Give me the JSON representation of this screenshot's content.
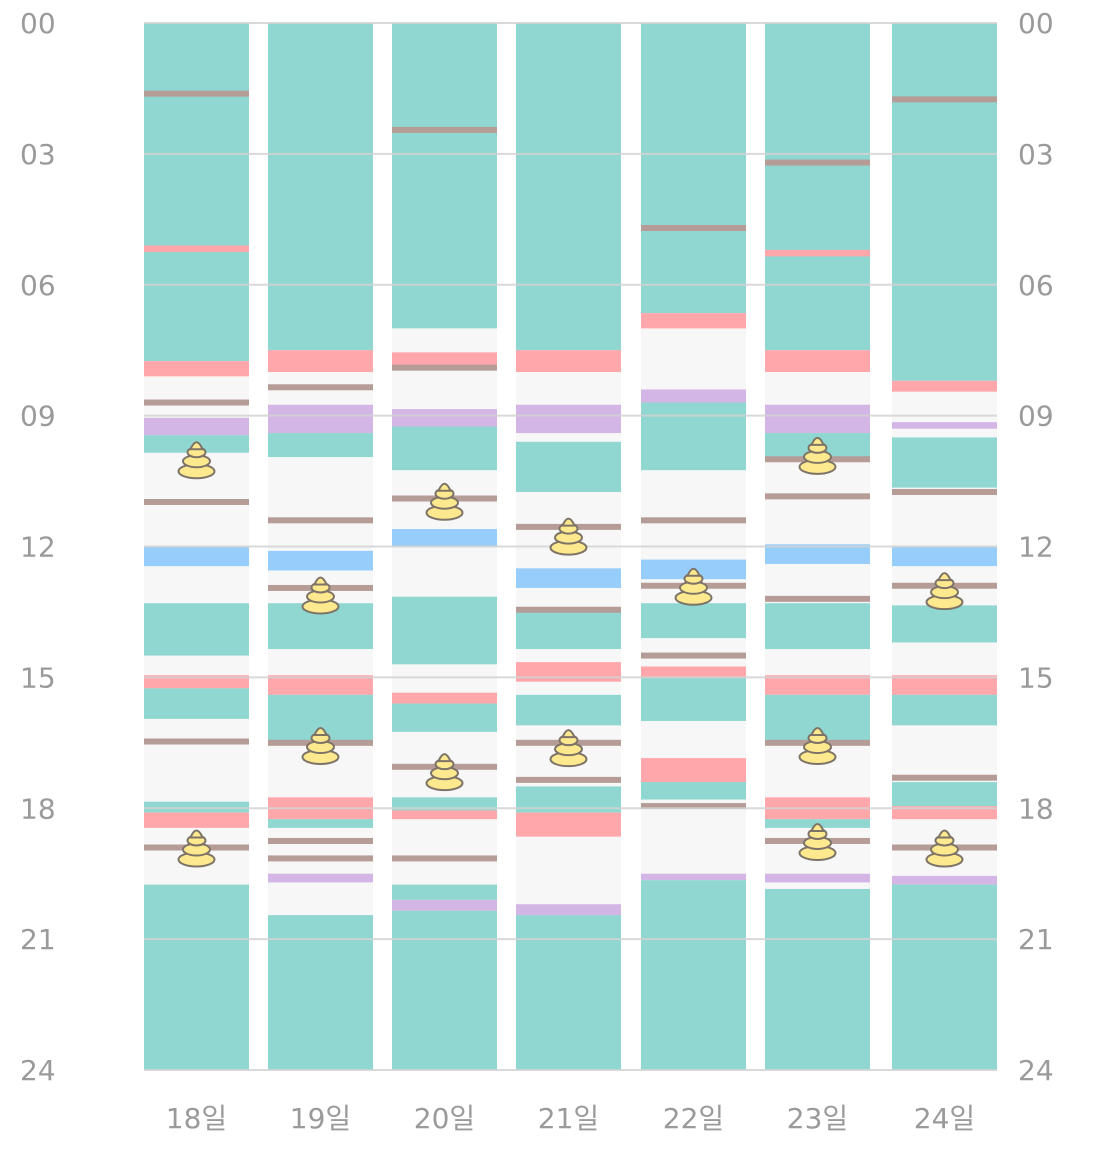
{
  "chart_data": {
    "type": "timeline",
    "y_axis": {
      "range_hours": [
        0,
        24
      ],
      "tick_labels": [
        "00",
        "03",
        "06",
        "09",
        "12",
        "15",
        "18",
        "21",
        "24"
      ],
      "tick_hours": [
        0,
        3,
        6,
        9,
        12,
        15,
        18,
        21,
        24
      ],
      "shown_on": [
        "left",
        "right"
      ]
    },
    "grid": true,
    "colors": {
      "teal": "#8fd7d0",
      "pink": "#ffa7ab",
      "purple": "#d3b6e6",
      "blue": "#97cdfb",
      "mark": "#b59c97",
      "gap": "#f7f7f7",
      "grid": "#d2d2d2",
      "icon_fill": "#ffe98f",
      "icon_stroke": "#7d7467"
    },
    "icon": "poop-icon",
    "days": [
      {
        "label": "18일",
        "blocks": [
          {
            "type": "teal",
            "start": 0,
            "end": 7.75
          },
          {
            "type": "pink",
            "start": 5.1,
            "end": 5.25
          },
          {
            "type": "pink",
            "start": 7.75,
            "end": 8.1
          },
          {
            "type": "purple",
            "start": 9.05,
            "end": 9.45
          },
          {
            "type": "teal",
            "start": 9.45,
            "end": 9.85
          },
          {
            "type": "blue",
            "start": 12.0,
            "end": 12.45
          },
          {
            "type": "teal",
            "start": 13.3,
            "end": 14.5
          },
          {
            "type": "pink",
            "start": 14.95,
            "end": 15.25
          },
          {
            "type": "teal",
            "start": 15.25,
            "end": 15.95
          },
          {
            "type": "teal",
            "start": 17.85,
            "end": 18.1
          },
          {
            "type": "pink",
            "start": 18.1,
            "end": 18.45
          },
          {
            "type": "teal",
            "start": 19.75,
            "end": 24
          }
        ],
        "marks": [
          1.62,
          8.7,
          10.98,
          16.47,
          18.9
        ],
        "poops": [
          10.0,
          18.9
        ]
      },
      {
        "label": "19일",
        "blocks": [
          {
            "type": "teal",
            "start": 0,
            "end": 7.5
          },
          {
            "type": "pink",
            "start": 7.5,
            "end": 8.0
          },
          {
            "type": "purple",
            "start": 8.75,
            "end": 9.4
          },
          {
            "type": "teal",
            "start": 9.4,
            "end": 9.95
          },
          {
            "type": "blue",
            "start": 12.1,
            "end": 12.55
          },
          {
            "type": "teal",
            "start": 13.3,
            "end": 14.35
          },
          {
            "type": "pink",
            "start": 14.95,
            "end": 15.4
          },
          {
            "type": "teal",
            "start": 15.4,
            "end": 16.45
          },
          {
            "type": "pink",
            "start": 17.75,
            "end": 18.25
          },
          {
            "type": "teal",
            "start": 18.25,
            "end": 18.45
          },
          {
            "type": "purple",
            "start": 19.5,
            "end": 19.7
          },
          {
            "type": "teal",
            "start": 20.45,
            "end": 24
          }
        ],
        "marks": [
          8.35,
          11.4,
          12.95,
          16.5,
          18.75,
          19.15
        ],
        "poops": [
          13.1,
          16.55
        ]
      },
      {
        "label": "20일",
        "blocks": [
          {
            "type": "teal",
            "start": 0,
            "end": 7.0
          },
          {
            "type": "pink",
            "start": 7.55,
            "end": 7.85
          },
          {
            "type": "purple",
            "start": 8.85,
            "end": 9.25
          },
          {
            "type": "teal",
            "start": 9.25,
            "end": 10.25
          },
          {
            "type": "blue",
            "start": 11.6,
            "end": 12.0
          },
          {
            "type": "teal",
            "start": 13.15,
            "end": 14.7
          },
          {
            "type": "pink",
            "start": 15.35,
            "end": 15.6
          },
          {
            "type": "teal",
            "start": 15.6,
            "end": 16.25
          },
          {
            "type": "teal",
            "start": 17.75,
            "end": 18.05
          },
          {
            "type": "pink",
            "start": 18.05,
            "end": 18.25
          },
          {
            "type": "teal",
            "start": 19.75,
            "end": 20.1
          },
          {
            "type": "purple",
            "start": 20.1,
            "end": 20.35
          },
          {
            "type": "teal",
            "start": 20.35,
            "end": 24
          }
        ],
        "marks": [
          2.45,
          7.9,
          10.9,
          17.05,
          19.15
        ],
        "poops": [
          10.95,
          17.15
        ]
      },
      {
        "label": "21일",
        "blocks": [
          {
            "type": "teal",
            "start": 0,
            "end": 7.5
          },
          {
            "type": "pink",
            "start": 7.5,
            "end": 8.0
          },
          {
            "type": "purple",
            "start": 8.75,
            "end": 9.4
          },
          {
            "type": "teal",
            "start": 9.6,
            "end": 10.75
          },
          {
            "type": "blue",
            "start": 12.5,
            "end": 12.95
          },
          {
            "type": "teal",
            "start": 13.5,
            "end": 14.35
          },
          {
            "type": "pink",
            "start": 14.65,
            "end": 15.1
          },
          {
            "type": "teal",
            "start": 15.4,
            "end": 16.1
          },
          {
            "type": "teal",
            "start": 17.5,
            "end": 18.1
          },
          {
            "type": "pink",
            "start": 18.1,
            "end": 18.65
          },
          {
            "type": "purple",
            "start": 20.2,
            "end": 20.45
          },
          {
            "type": "teal",
            "start": 20.45,
            "end": 24
          }
        ],
        "marks": [
          11.55,
          13.45,
          16.5,
          17.35
        ],
        "poops": [
          11.75,
          16.6
        ]
      },
      {
        "label": "22일",
        "blocks": [
          {
            "type": "teal",
            "start": 0,
            "end": 6.65
          },
          {
            "type": "pink",
            "start": 6.65,
            "end": 7.0
          },
          {
            "type": "purple",
            "start": 8.4,
            "end": 8.7
          },
          {
            "type": "teal",
            "start": 8.7,
            "end": 10.25
          },
          {
            "type": "blue",
            "start": 12.3,
            "end": 12.75
          },
          {
            "type": "teal",
            "start": 13.3,
            "end": 14.1
          },
          {
            "type": "pink",
            "start": 14.75,
            "end": 15.0
          },
          {
            "type": "teal",
            "start": 15.0,
            "end": 16.0
          },
          {
            "type": "pink",
            "start": 16.85,
            "end": 17.4
          },
          {
            "type": "teal",
            "start": 17.4,
            "end": 17.8
          },
          {
            "type": "purple",
            "start": 19.5,
            "end": 19.65
          },
          {
            "type": "teal",
            "start": 19.65,
            "end": 24
          }
        ],
        "marks": [
          4.7,
          11.4,
          12.9,
          14.5,
          17.95
        ],
        "poops": [
          12.9
        ]
      },
      {
        "label": "23일",
        "blocks": [
          {
            "type": "teal",
            "start": 0,
            "end": 7.5
          },
          {
            "type": "pink",
            "start": 5.2,
            "end": 5.35
          },
          {
            "type": "pink",
            "start": 7.5,
            "end": 8.0
          },
          {
            "type": "purple",
            "start": 8.75,
            "end": 9.4
          },
          {
            "type": "teal",
            "start": 9.4,
            "end": 9.95
          },
          {
            "type": "blue",
            "start": 11.95,
            "end": 12.4
          },
          {
            "type": "teal",
            "start": 13.3,
            "end": 14.35
          },
          {
            "type": "pink",
            "start": 14.95,
            "end": 15.4
          },
          {
            "type": "teal",
            "start": 15.4,
            "end": 16.45
          },
          {
            "type": "pink",
            "start": 17.75,
            "end": 18.25
          },
          {
            "type": "teal",
            "start": 18.25,
            "end": 18.45
          },
          {
            "type": "purple",
            "start": 19.5,
            "end": 19.7
          },
          {
            "type": "teal",
            "start": 19.85,
            "end": 24
          }
        ],
        "marks": [
          3.2,
          10.0,
          10.85,
          13.2,
          16.5,
          18.75
        ],
        "poops": [
          9.9,
          16.55,
          18.75
        ]
      },
      {
        "label": "24일",
        "blocks": [
          {
            "type": "teal",
            "start": 0,
            "end": 8.2
          },
          {
            "type": "pink",
            "start": 8.2,
            "end": 8.45
          },
          {
            "type": "purple",
            "start": 9.15,
            "end": 9.3
          },
          {
            "type": "teal",
            "start": 9.5,
            "end": 10.65
          },
          {
            "type": "blue",
            "start": 12.0,
            "end": 12.45
          },
          {
            "type": "teal",
            "start": 13.35,
            "end": 14.2
          },
          {
            "type": "pink",
            "start": 14.95,
            "end": 15.4
          },
          {
            "type": "teal",
            "start": 15.4,
            "end": 16.1
          },
          {
            "type": "teal",
            "start": 17.4,
            "end": 17.95
          },
          {
            "type": "pink",
            "start": 17.95,
            "end": 18.25
          },
          {
            "type": "purple",
            "start": 19.55,
            "end": 19.75
          },
          {
            "type": "teal",
            "start": 19.75,
            "end": 24
          }
        ],
        "marks": [
          1.75,
          10.75,
          12.9,
          17.3,
          18.9
        ],
        "poops": [
          13.0,
          18.9
        ]
      }
    ]
  }
}
